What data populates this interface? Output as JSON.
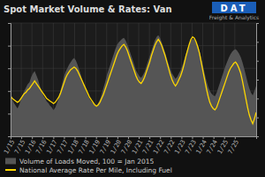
{
  "chart_data": {
    "type": "area",
    "title": "Spot Market Volume & Rates: Van",
    "annotations": [
      "DAT",
      "Freight & Analytics"
    ],
    "xlim": [
      0,
      143
    ],
    "xticks": [
      {
        "value": 0,
        "label": "1/15"
      },
      {
        "value": 6.217391304347826,
        "label": "7/15"
      },
      {
        "value": 12.434782608695652,
        "label": "1/16"
      },
      {
        "value": 18.652173913043477,
        "label": "7/16"
      },
      {
        "value": 24.869565217391305,
        "label": "1/17"
      },
      {
        "value": 31.08695652173913,
        "label": "7/17"
      },
      {
        "value": 37.30434782608695,
        "label": "1/18"
      },
      {
        "value": 43.52173913043478,
        "label": "7/18"
      },
      {
        "value": 49.73913043478261,
        "label": "1/19"
      },
      {
        "value": 55.95652173913044,
        "label": "7/19"
      },
      {
        "value": 62.17391304347826,
        "label": "1/20"
      },
      {
        "value": 68.3913043478261,
        "label": "7/20"
      },
      {
        "value": 74.6086956521739,
        "label": "1/21"
      },
      {
        "value": 80.82608695652173,
        "label": "7/21"
      },
      {
        "value": 87.04347826086956,
        "label": "1/22"
      },
      {
        "value": 93.26086956521739,
        "label": "7/22"
      },
      {
        "value": 99.47826086956522,
        "label": "1/23"
      },
      {
        "value": 105.69565217391305,
        "label": "7/23"
      },
      {
        "value": 111.91304347826087,
        "label": "1/24"
      },
      {
        "value": 118.1304347826087,
        "label": "7/24"
      },
      {
        "value": 124.34782608695652,
        "label": "1/25"
      },
      {
        "value": 130.56521739130434,
        "label": "7/25"
      }
    ],
    "ylim": [
      0,
      130
    ],
    "yticks": [
      0,
      26,
      52,
      78,
      104,
      130
    ],
    "y2lim": [
      40,
      130
    ],
    "y2ticks": [
      40,
      55,
      70,
      85,
      100,
      115,
      130
    ],
    "grid": true,
    "legend": "bottom",
    "tick_labels": "x",
    "series": [
      {
        "name": "Volume of Loads Moved, 100 = Jan 2015",
        "type": "area",
        "color": "#555555",
        "values": [
          45,
          42,
          38,
          35,
          32,
          36,
          42,
          48,
          52,
          56,
          60,
          62,
          68,
          72,
          75,
          70,
          65,
          58,
          52,
          47,
          44,
          40,
          38,
          35,
          33,
          30,
          33,
          38,
          44,
          52,
          60,
          68,
          74,
          78,
          82,
          85,
          88,
          90,
          87,
          82,
          76,
          70,
          63,
          57,
          52,
          47,
          43,
          40,
          38,
          36,
          35,
          38,
          42,
          48,
          55,
          62,
          70,
          76,
          82,
          88,
          94,
          100,
          105,
          108,
          110,
          112,
          113,
          110,
          105,
          100,
          94,
          88,
          82,
          76,
          72,
          69,
          67,
          70,
          74,
          80,
          86,
          92,
          98,
          104,
          110,
          114,
          116,
          113,
          108,
          102,
          96,
          89,
          83,
          77,
          72,
          69,
          66,
          68,
          72,
          76,
          81,
          87,
          94,
          100,
          106,
          110,
          112,
          111,
          108,
          104,
          98,
          90,
          81,
          72,
          64,
          57,
          52,
          49,
          47,
          46,
          50,
          56,
          62,
          68,
          74,
          80,
          85,
          90,
          94,
          97,
          99,
          100,
          98,
          95,
          91,
          85,
          78,
          70,
          62,
          55,
          50,
          47,
          52,
          58
        ]
      },
      {
        "name": "National Average Rate Per Mile, Including Fuel",
        "type": "line",
        "color": "#FFD700",
        "axis": "y2",
        "values": [
          72,
          70,
          69,
          68,
          67,
          68,
          70,
          72,
          74,
          75,
          77,
          78,
          80,
          82,
          84,
          82,
          80,
          78,
          76,
          74,
          72,
          70,
          69,
          68,
          67,
          66,
          67,
          69,
          71,
          74,
          78,
          82,
          86,
          89,
          91,
          93,
          94,
          95,
          94,
          92,
          89,
          86,
          83,
          80,
          77,
          74,
          71,
          69,
          67,
          65,
          64,
          65,
          67,
          70,
          73,
          77,
          81,
          85,
          89,
          93,
          97,
          101,
          105,
          108,
          110,
          112,
          113,
          111,
          108,
          104,
          100,
          96,
          92,
          88,
          85,
          83,
          82,
          84,
          87,
          91,
          95,
          99,
          104,
          108,
          112,
          115,
          117,
          115,
          112,
          108,
          104,
          99,
          94,
          89,
          85,
          82,
          80,
          82,
          85,
          88,
          92,
          97,
          103,
          108,
          113,
          117,
          119,
          118,
          115,
          111,
          106,
          99,
          92,
          85,
          78,
          72,
          67,
          64,
          62,
          61,
          63,
          67,
          71,
          75,
          79,
          83,
          87,
          91,
          94,
          96,
          98,
          99,
          97,
          94,
          90,
          84,
          77,
          70,
          63,
          57,
          53,
          50,
          54,
          59
        ]
      }
    ]
  }
}
